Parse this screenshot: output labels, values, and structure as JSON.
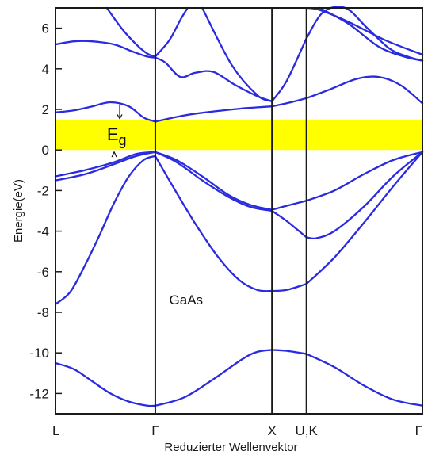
{
  "chart_data": {
    "type": "line",
    "title": "",
    "xlabel": "Reduzierter Wellenvektor",
    "ylabel": "Energie(eV)",
    "ylim": [
      -13,
      7
    ],
    "xlim": [
      0,
      100
    ],
    "grid": false,
    "y_ticks": [
      6,
      4,
      2,
      0,
      -2,
      -4,
      -6,
      -8,
      -10,
      -12
    ],
    "x_tick_labels": [
      {
        "label": "L",
        "x": 0
      },
      {
        "label": "Γ",
        "x": 27.2
      },
      {
        "label": "X",
        "x": 59.0
      },
      {
        "label": "U,K",
        "x": 68.4
      },
      {
        "label": "Γ",
        "x": 100
      }
    ],
    "symmetry_lines_x": [
      27.2,
      59.0,
      68.4
    ],
    "band_gap": {
      "from": 0,
      "to": 1.5,
      "label": "E",
      "subscript": "g",
      "color": "#ffff00"
    },
    "annotations": [
      {
        "text": "GaAs",
        "x": 31,
        "y": -7.6
      }
    ],
    "series_color": "#2a2ae0",
    "series": [
      {
        "x": [
          0,
          5,
          10,
          15,
          20,
          25,
          27.2
        ],
        "y": [
          -10.5,
          -10.8,
          -11.4,
          -12.0,
          -12.4,
          -12.6,
          -12.6
        ]
      },
      {
        "x": [
          27.2,
          35,
          43,
          51,
          55,
          59.0
        ],
        "y": [
          -12.6,
          -12.2,
          -11.3,
          -10.3,
          -9.95,
          -9.85
        ]
      },
      {
        "x": [
          59.0,
          63,
          68.4
        ],
        "y": [
          -9.85,
          -9.9,
          -10.05
        ]
      },
      {
        "x": [
          68.4,
          76,
          84,
          92,
          100
        ],
        "y": [
          -10.05,
          -10.7,
          -11.6,
          -12.3,
          -12.6
        ]
      },
      {
        "x": [
          0,
          4,
          8,
          12,
          16,
          20,
          24,
          27.2
        ],
        "y": [
          -7.6,
          -7.0,
          -5.7,
          -4.2,
          -2.6,
          -1.3,
          -0.5,
          -0.3
        ]
      },
      {
        "x": [
          27.2,
          32,
          38,
          44,
          50,
          55,
          59.0
        ],
        "y": [
          -0.3,
          -1.8,
          -3.6,
          -5.2,
          -6.4,
          -6.9,
          -6.95
        ]
      },
      {
        "x": [
          59.0,
          63,
          68.4
        ],
        "y": [
          -6.95,
          -6.9,
          -6.6
        ]
      },
      {
        "x": [
          68.4,
          76,
          84,
          92,
          100
        ],
        "y": [
          -6.6,
          -5.3,
          -3.6,
          -1.8,
          -0.1
        ]
      },
      {
        "x": [
          0,
          8,
          16,
          22,
          27.2
        ],
        "y": [
          -1.5,
          -1.2,
          -0.7,
          -0.3,
          -0.1
        ]
      },
      {
        "x": [
          27.2,
          33,
          40,
          47,
          53,
          59.0
        ],
        "y": [
          -0.1,
          -0.6,
          -1.5,
          -2.3,
          -2.8,
          -3.0
        ]
      },
      {
        "x": [
          59.0,
          63,
          68.4
        ],
        "y": [
          -3.0,
          -3.5,
          -4.3
        ]
      },
      {
        "x": [
          68.4,
          71,
          76,
          84,
          92,
          100
        ],
        "y": [
          -4.3,
          -4.35,
          -4.0,
          -2.8,
          -1.3,
          -0.1
        ]
      },
      {
        "x": [
          0,
          8,
          16,
          22,
          27.2
        ],
        "y": [
          -1.3,
          -1.0,
          -0.6,
          -0.2,
          -0.1
        ]
      },
      {
        "x": [
          27.2,
          33,
          40,
          47,
          53,
          59.0
        ],
        "y": [
          -0.1,
          -0.5,
          -1.3,
          -2.2,
          -2.7,
          -2.95
        ]
      },
      {
        "x": [
          59.0,
          63,
          68.4
        ],
        "y": [
          -2.95,
          -2.75,
          -2.5
        ]
      },
      {
        "x": [
          68.4,
          76,
          84,
          92,
          100
        ],
        "y": [
          -2.5,
          -2.0,
          -1.2,
          -0.5,
          -0.1
        ]
      },
      {
        "x": [
          0,
          5,
          10,
          15,
          20,
          24,
          27.2
        ],
        "y": [
          1.85,
          1.95,
          2.15,
          2.35,
          2.15,
          1.6,
          1.4
        ]
      },
      {
        "x": [
          27.2,
          35,
          43,
          51,
          55,
          59.0
        ],
        "y": [
          1.4,
          1.7,
          1.9,
          2.05,
          2.1,
          2.15
        ]
      },
      {
        "x": [
          59.0,
          63,
          68.4
        ],
        "y": [
          2.15,
          2.3,
          2.55
        ]
      },
      {
        "x": [
          68.4,
          75,
          82,
          88,
          94,
          100
        ],
        "y": [
          2.55,
          3.0,
          3.5,
          3.6,
          3.2,
          2.3
        ]
      },
      {
        "x": [
          0,
          5,
          10,
          16,
          21,
          25,
          27.2
        ],
        "y": [
          5.2,
          5.35,
          5.35,
          5.2,
          4.85,
          4.6,
          4.55
        ]
      },
      {
        "x": [
          27.2,
          30,
          34,
          38,
          43,
          49,
          55,
          59.0
        ],
        "y": [
          4.55,
          4.3,
          3.6,
          3.8,
          3.85,
          3.2,
          2.65,
          2.4
        ]
      },
      {
        "x": [
          59.0,
          63,
          68.4
        ],
        "y": [
          2.4,
          3.4,
          5.5
        ]
      },
      {
        "x": [
          68.4,
          73,
          79,
          85,
          91,
          96,
          100
        ],
        "y": [
          5.5,
          6.8,
          7.0,
          6.0,
          5.0,
          4.6,
          4.4
        ]
      },
      {
        "x": [
          14,
          18,
          22,
          25,
          27.2
        ],
        "y": [
          7.0,
          6.0,
          5.2,
          4.75,
          4.6
        ]
      },
      {
        "x": [
          27.2,
          31,
          34,
          36
        ],
        "y": [
          4.6,
          5.4,
          6.4,
          7.0
        ]
      },
      {
        "x": [
          40,
          48,
          55,
          59.0
        ],
        "y": [
          7.0,
          4.2,
          2.7,
          2.4
        ]
      },
      {
        "x": [
          68.4,
          72,
          80,
          90,
          100
        ],
        "y": [
          7.0,
          6.9,
          6.3,
          5.4,
          4.7
        ]
      },
      {
        "x": [
          72,
          80,
          88,
          95,
          100
        ],
        "y": [
          7.0,
          6.2,
          5.1,
          4.6,
          4.4
        ]
      }
    ]
  }
}
